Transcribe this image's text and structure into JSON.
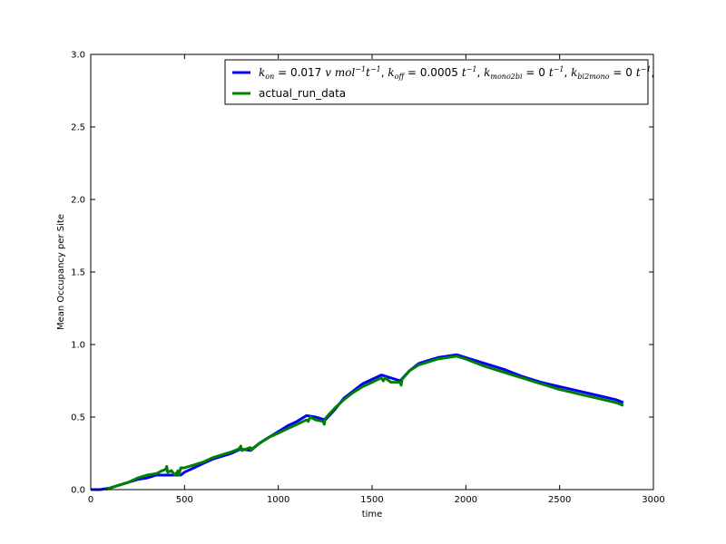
{
  "chart_data": {
    "type": "line",
    "title": "",
    "xlabel": "time",
    "ylabel": "Mean Occupancy per Site",
    "xlim": [
      0,
      3000
    ],
    "ylim": [
      0.0,
      3.0
    ],
    "x_ticks": [
      "0",
      "500",
      "1000",
      "1500",
      "2000",
      "2500",
      "3000"
    ],
    "y_ticks": [
      "0.0",
      "0.5",
      "1.0",
      "1.5",
      "2.0",
      "2.5",
      "3.0"
    ],
    "grid": false,
    "legend_position": "top-right",
    "series": [
      {
        "name": "k_on = 0.017 v mol⁻¹ t⁻¹, k_off = 0.0005 t⁻¹, k_mono2bi = 0 t⁻¹, k_bi2mono = 0 t⁻¹,",
        "color": "#0000ff",
        "x": [
          0,
          50,
          100,
          150,
          200,
          250,
          300,
          350,
          400,
          450,
          480,
          500,
          550,
          600,
          650,
          700,
          750,
          800,
          850,
          900,
          950,
          1000,
          1050,
          1100,
          1150,
          1200,
          1250,
          1300,
          1350,
          1400,
          1450,
          1500,
          1550,
          1600,
          1650,
          1700,
          1750,
          1800,
          1850,
          1900,
          1950,
          2000,
          2100,
          2200,
          2300,
          2400,
          2500,
          2600,
          2700,
          2800,
          2840
        ],
        "y": [
          0.0,
          0.0,
          0.01,
          0.03,
          0.05,
          0.07,
          0.08,
          0.1,
          0.1,
          0.1,
          0.1,
          0.12,
          0.15,
          0.18,
          0.21,
          0.23,
          0.25,
          0.28,
          0.27,
          0.32,
          0.36,
          0.4,
          0.44,
          0.47,
          0.51,
          0.5,
          0.48,
          0.55,
          0.63,
          0.68,
          0.73,
          0.76,
          0.79,
          0.77,
          0.75,
          0.82,
          0.87,
          0.89,
          0.91,
          0.92,
          0.93,
          0.91,
          0.87,
          0.83,
          0.78,
          0.74,
          0.71,
          0.68,
          0.65,
          0.62,
          0.6
        ]
      },
      {
        "name": "actual_run_data",
        "color": "#008000",
        "x": [
          80,
          100,
          150,
          200,
          250,
          300,
          350,
          380,
          400,
          405,
          410,
          430,
          450,
          465,
          470,
          480,
          500,
          550,
          600,
          650,
          700,
          750,
          790,
          800,
          805,
          830,
          850,
          855,
          900,
          950,
          1000,
          1050,
          1100,
          1150,
          1160,
          1170,
          1200,
          1240,
          1245,
          1250,
          1300,
          1350,
          1400,
          1450,
          1500,
          1550,
          1560,
          1570,
          1600,
          1650,
          1655,
          1660,
          1700,
          1750,
          1800,
          1850,
          1900,
          1950,
          2000,
          2100,
          2200,
          2300,
          2400,
          2500,
          2600,
          2700,
          2800,
          2840
        ],
        "y": [
          0.0,
          0.01,
          0.03,
          0.05,
          0.08,
          0.1,
          0.11,
          0.13,
          0.14,
          0.16,
          0.12,
          0.13,
          0.1,
          0.13,
          0.1,
          0.15,
          0.15,
          0.17,
          0.19,
          0.22,
          0.24,
          0.26,
          0.28,
          0.3,
          0.27,
          0.28,
          0.29,
          0.27,
          0.32,
          0.36,
          0.39,
          0.42,
          0.45,
          0.48,
          0.47,
          0.5,
          0.48,
          0.47,
          0.45,
          0.49,
          0.56,
          0.62,
          0.67,
          0.71,
          0.74,
          0.77,
          0.75,
          0.77,
          0.74,
          0.74,
          0.72,
          0.76,
          0.82,
          0.86,
          0.88,
          0.9,
          0.91,
          0.92,
          0.9,
          0.85,
          0.81,
          0.77,
          0.73,
          0.69,
          0.66,
          0.63,
          0.6,
          0.58
        ]
      }
    ]
  },
  "legend": {
    "k_sym": "k",
    "sub_on": "on",
    "sub_off": "off",
    "sub_mono2bi": "mono2bi",
    "sub_bi2mono": "bi2mono",
    "eq": " = ",
    "val_on": "0.017",
    "unit_on": "v mol",
    "unit_t": "t",
    "sup_neg1": "−1",
    "val_off": "0.0005",
    "val_zero": "0",
    "sep": ", ",
    "trailing_comma": ",",
    "series2_label": "actual_run_data"
  }
}
